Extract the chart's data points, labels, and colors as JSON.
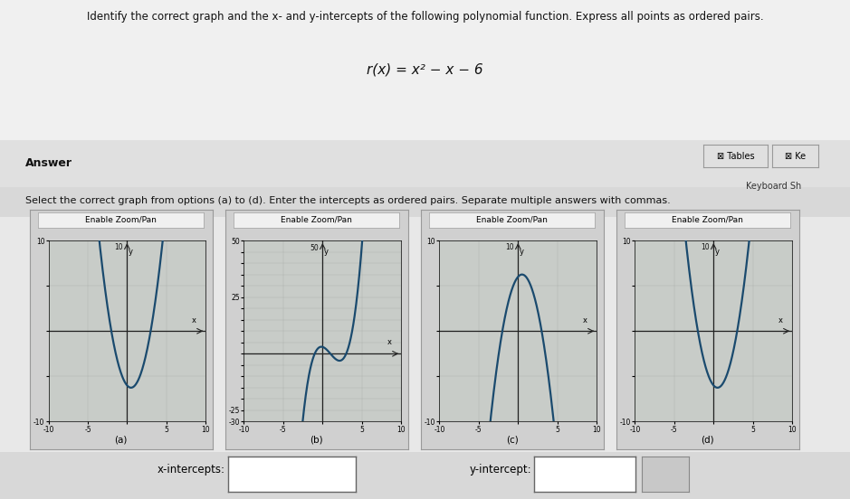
{
  "title": "Identify the correct graph and the x- and y-intercepts of the following polynomial function. Express all points as ordered pairs.",
  "function_label": "r(x) = x² − x − 6",
  "answer_label": "Answer",
  "select_label": "Select the correct graph from options (a) to (d). Enter the intercepts as ordered pairs. Separate multiple answers with commas.",
  "graph_labels": [
    "(a)",
    "(b)",
    "(c)",
    "(d)"
  ],
  "enable_zoom_pan": "Enable Zoom/Pan",
  "x_intercepts_label": "x-intercepts:",
  "y_intercept_label": "y-intercept:",
  "bg_top": "#e8e8e8",
  "bg_bottom": "#d0d0d0",
  "panel_outer": "#c8c8c8",
  "graph_bg": "#c8ccc8",
  "curve_color": "#1a4a6e",
  "axis_color": "#222222",
  "grid_color": "#aaaaaa",
  "button_bg": "#e8e8e8",
  "input_bg": "#ffffff",
  "tables_bg": "#e0e0e0"
}
